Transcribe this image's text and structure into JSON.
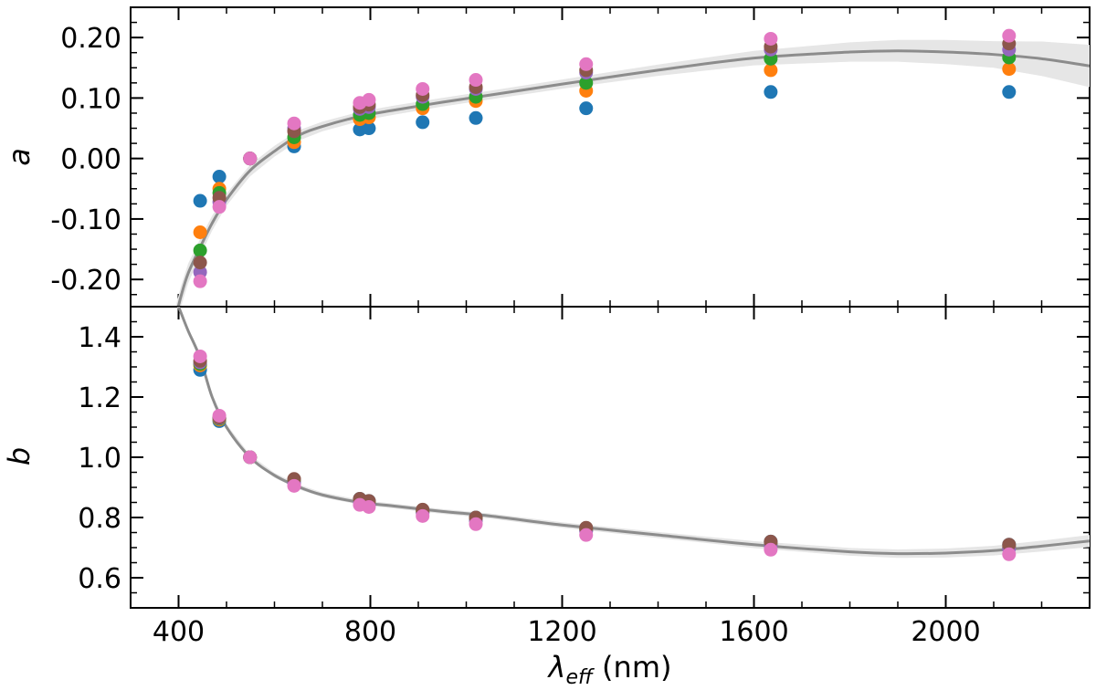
{
  "chart_data": [
    {
      "type": "scatter",
      "panel": "top",
      "ylabel": "a",
      "xlim": [
        300,
        2300
      ],
      "ylim": [
        -0.245,
        0.25
      ],
      "grid": false,
      "legend": "none",
      "yticks": [
        -0.2,
        -0.1,
        0.0,
        0.1,
        0.2
      ],
      "ytick_labels": [
        "-0.20",
        "-0.10",
        "0.00",
        "0.10",
        "0.20"
      ],
      "series": [
        {
          "color": "#1f77b4",
          "points": [
            [
              445,
              -0.07
            ],
            [
              485,
              -0.03
            ],
            [
              549,
              0.0
            ],
            [
              641,
              0.02
            ],
            [
              778,
              0.048
            ],
            [
              797,
              0.05
            ],
            [
              909,
              0.06
            ],
            [
              1020,
              0.067
            ],
            [
              1250,
              0.083
            ],
            [
              1635,
              0.11
            ],
            [
              2132,
              0.11
            ]
          ]
        },
        {
          "color": "#ff7f0e",
          "points": [
            [
              445,
              -0.122
            ],
            [
              485,
              -0.05
            ],
            [
              549,
              0.0
            ],
            [
              641,
              0.027
            ],
            [
              778,
              0.065
            ],
            [
              797,
              0.068
            ],
            [
              909,
              0.083
            ],
            [
              1020,
              0.095
            ],
            [
              1250,
              0.112
            ],
            [
              1635,
              0.146
            ],
            [
              2132,
              0.148
            ]
          ]
        },
        {
          "color": "#2ca02c",
          "points": [
            [
              445,
              -0.152
            ],
            [
              485,
              -0.057
            ],
            [
              549,
              0.0
            ],
            [
              641,
              0.035
            ],
            [
              778,
              0.072
            ],
            [
              797,
              0.075
            ],
            [
              909,
              0.09
            ],
            [
              1020,
              0.102
            ],
            [
              1250,
              0.125
            ],
            [
              1635,
              0.165
            ],
            [
              2132,
              0.167
            ]
          ]
        },
        {
          "color": "#9467bd",
          "points": [
            [
              445,
              -0.188
            ],
            [
              485,
              -0.072
            ],
            [
              549,
              0.0
            ],
            [
              641,
              0.05
            ],
            [
              778,
              0.082
            ],
            [
              797,
              0.085
            ],
            [
              909,
              0.102
            ],
            [
              1020,
              0.115
            ],
            [
              1250,
              0.142
            ],
            [
              1635,
              0.18
            ],
            [
              2132,
              0.18
            ]
          ]
        },
        {
          "color": "#8c564b",
          "points": [
            [
              445,
              -0.172
            ],
            [
              485,
              -0.065
            ],
            [
              549,
              0.0
            ],
            [
              641,
              0.045
            ],
            [
              778,
              0.085
            ],
            [
              797,
              0.089
            ],
            [
              909,
              0.105
            ],
            [
              1020,
              0.118
            ],
            [
              1250,
              0.146
            ],
            [
              1635,
              0.185
            ],
            [
              2132,
              0.19
            ]
          ]
        },
        {
          "color": "#e377c2",
          "points": [
            [
              445,
              -0.203
            ],
            [
              485,
              -0.08
            ],
            [
              549,
              0.0
            ],
            [
              641,
              0.058
            ],
            [
              778,
              0.092
            ],
            [
              797,
              0.097
            ],
            [
              909,
              0.115
            ],
            [
              1020,
              0.13
            ],
            [
              1250,
              0.156
            ],
            [
              1635,
              0.198
            ],
            [
              2132,
              0.203
            ]
          ]
        }
      ],
      "fit": {
        "color": "#8c8c8c",
        "band_color": "#e6e6e6",
        "points": [
          [
            395,
            -0.26
          ],
          [
            405,
            -0.228
          ],
          [
            420,
            -0.19
          ],
          [
            445,
            -0.147
          ],
          [
            470,
            -0.107
          ],
          [
            500,
            -0.068
          ],
          [
            549,
            -0.02
          ],
          [
            600,
            0.012
          ],
          [
            650,
            0.038
          ],
          [
            700,
            0.053
          ],
          [
            780,
            0.07
          ],
          [
            850,
            0.08
          ],
          [
            950,
            0.093
          ],
          [
            1050,
            0.105
          ],
          [
            1200,
            0.123
          ],
          [
            1400,
            0.146
          ],
          [
            1600,
            0.166
          ],
          [
            1800,
            0.176
          ],
          [
            1900,
            0.178
          ],
          [
            2000,
            0.176
          ],
          [
            2100,
            0.172
          ],
          [
            2200,
            0.165
          ],
          [
            2300,
            0.153
          ]
        ],
        "band_halfwidth": [
          [
            395,
            0.018
          ],
          [
            500,
            0.01
          ],
          [
            700,
            0.008
          ],
          [
            1000,
            0.007
          ],
          [
            1300,
            0.008
          ],
          [
            1600,
            0.012
          ],
          [
            1900,
            0.018
          ],
          [
            2100,
            0.022
          ],
          [
            2300,
            0.035
          ]
        ]
      }
    },
    {
      "type": "scatter",
      "panel": "bottom",
      "ylabel": "b",
      "xlabel": "λeff (nm)",
      "xlim": [
        300,
        2300
      ],
      "ylim": [
        0.5,
        1.5
      ],
      "grid": false,
      "legend": "none",
      "xticks": [
        400,
        800,
        1200,
        1600,
        2000
      ],
      "xtick_labels": [
        "400",
        "800",
        "1200",
        "1600",
        "2000"
      ],
      "yticks": [
        0.6,
        0.8,
        1.0,
        1.2,
        1.4
      ],
      "ytick_labels": [
        "0.6",
        "0.8",
        "1.0",
        "1.2",
        "1.4"
      ],
      "series": [
        {
          "color": "#1f77b4",
          "points": [
            [
              445,
              1.29
            ],
            [
              485,
              1.12
            ],
            [
              549,
              1.0
            ],
            [
              641,
              0.925
            ],
            [
              778,
              0.862
            ],
            [
              797,
              0.855
            ],
            [
              909,
              0.825
            ],
            [
              1020,
              0.8
            ],
            [
              1250,
              0.765
            ],
            [
              1635,
              0.72
            ],
            [
              2132,
              0.71
            ]
          ]
        },
        {
          "color": "#ff7f0e",
          "points": [
            [
              445,
              1.305
            ],
            [
              485,
              1.125
            ],
            [
              549,
              1.0
            ],
            [
              641,
              0.92
            ],
            [
              778,
              0.855
            ],
            [
              797,
              0.85
            ],
            [
              909,
              0.82
            ],
            [
              1020,
              0.795
            ],
            [
              1250,
              0.76
            ],
            [
              1635,
              0.712
            ],
            [
              2132,
              0.702
            ]
          ]
        },
        {
          "color": "#2ca02c",
          "points": [
            [
              445,
              1.31
            ],
            [
              485,
              1.128
            ],
            [
              549,
              1.0
            ],
            [
              641,
              0.918
            ],
            [
              778,
              0.852
            ],
            [
              797,
              0.846
            ],
            [
              909,
              0.818
            ],
            [
              1020,
              0.792
            ],
            [
              1250,
              0.758
            ],
            [
              1635,
              0.71
            ],
            [
              2132,
              0.7
            ]
          ]
        },
        {
          "color": "#9467bd",
          "points": [
            [
              445,
              1.315
            ],
            [
              485,
              1.13
            ],
            [
              549,
              1.0
            ],
            [
              641,
              0.915
            ],
            [
              778,
              0.85
            ],
            [
              797,
              0.843
            ],
            [
              909,
              0.815
            ],
            [
              1020,
              0.79
            ],
            [
              1250,
              0.755
            ],
            [
              1635,
              0.707
            ],
            [
              2132,
              0.697
            ]
          ]
        },
        {
          "color": "#8c564b",
          "points": [
            [
              445,
              1.32
            ],
            [
              485,
              1.132
            ],
            [
              549,
              1.0
            ],
            [
              641,
              0.928
            ],
            [
              778,
              0.862
            ],
            [
              797,
              0.855
            ],
            [
              909,
              0.826
            ],
            [
              1020,
              0.8
            ],
            [
              1250,
              0.766
            ],
            [
              1635,
              0.72
            ],
            [
              2132,
              0.71
            ]
          ]
        },
        {
          "color": "#e377c2",
          "points": [
            [
              445,
              1.335
            ],
            [
              485,
              1.138
            ],
            [
              549,
              1.0
            ],
            [
              641,
              0.905
            ],
            [
              778,
              0.842
            ],
            [
              797,
              0.835
            ],
            [
              909,
              0.805
            ],
            [
              1020,
              0.778
            ],
            [
              1250,
              0.742
            ],
            [
              1635,
              0.693
            ],
            [
              2132,
              0.678
            ]
          ]
        }
      ],
      "fit": {
        "color": "#8c8c8c",
        "band_color": "#e6e6e6",
        "points": [
          [
            395,
            1.52
          ],
          [
            405,
            1.48
          ],
          [
            420,
            1.42
          ],
          [
            445,
            1.33
          ],
          [
            470,
            1.2
          ],
          [
            500,
            1.1
          ],
          [
            549,
            1.0
          ],
          [
            600,
            0.94
          ],
          [
            650,
            0.902
          ],
          [
            700,
            0.875
          ],
          [
            780,
            0.85
          ],
          [
            850,
            0.838
          ],
          [
            950,
            0.82
          ],
          [
            1050,
            0.805
          ],
          [
            1200,
            0.775
          ],
          [
            1400,
            0.742
          ],
          [
            1600,
            0.71
          ],
          [
            1800,
            0.686
          ],
          [
            1900,
            0.68
          ],
          [
            2000,
            0.682
          ],
          [
            2100,
            0.69
          ],
          [
            2200,
            0.705
          ],
          [
            2300,
            0.722
          ]
        ],
        "band_halfwidth": [
          [
            395,
            0.01
          ],
          [
            600,
            0.008
          ],
          [
            1000,
            0.008
          ],
          [
            1400,
            0.01
          ],
          [
            1800,
            0.013
          ],
          [
            2100,
            0.016
          ],
          [
            2300,
            0.02
          ]
        ]
      }
    }
  ]
}
